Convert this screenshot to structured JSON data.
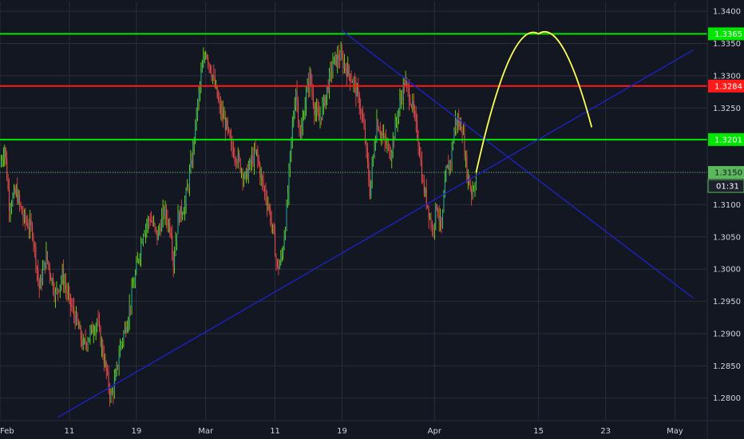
{
  "colors": {
    "background": "#131722",
    "grid": "#2a2e39",
    "axis_text": "#d1d4dc",
    "bull": "#26a69a",
    "bear": "#ef5350",
    "bull_wick": "#7cfc00",
    "bear_wick": "#ff4d4d",
    "resistance_green": "#00e600",
    "resistance_red": "#ff1a1a",
    "trendline": "#1e22cc",
    "projection": "#ffff55",
    "current_price": "#5cb85c"
  },
  "chart_data": {
    "type": "candlestick",
    "title": "",
    "xlabel": "",
    "ylabel": "",
    "ylim": [
      1.2765,
      1.3415
    ],
    "y_ticks": [
      "1.2800",
      "1.2850",
      "1.2900",
      "1.2950",
      "1.3000",
      "1.3050",
      "1.3100",
      "1.3150",
      "1.3200",
      "1.3250",
      "1.3300",
      "1.3350",
      "1.3400"
    ],
    "x_ticks": [
      {
        "label": "Feb",
        "slot": 0
      },
      {
        "label": "11",
        "slot": 60
      },
      {
        "label": "19",
        "slot": 118
      },
      {
        "label": "Mar",
        "slot": 178
      },
      {
        "label": "11",
        "slot": 238
      },
      {
        "label": "19",
        "slot": 296
      },
      {
        "label": "Apr",
        "slot": 376
      },
      {
        "label": "15",
        "slot": 466
      },
      {
        "label": "23",
        "slot": 524
      },
      {
        "label": "May",
        "slot": 584
      }
    ],
    "grid": true,
    "price_path": [
      [
        0,
        1.316
      ],
      [
        4,
        1.319
      ],
      [
        8,
        1.31
      ],
      [
        14,
        1.312
      ],
      [
        20,
        1.308
      ],
      [
        28,
        1.306
      ],
      [
        34,
        1.297
      ],
      [
        40,
        1.302
      ],
      [
        48,
        1.296
      ],
      [
        54,
        1.299
      ],
      [
        60,
        1.295
      ],
      [
        66,
        1.292
      ],
      [
        72,
        1.288
      ],
      [
        78,
        1.29
      ],
      [
        84,
        1.292
      ],
      [
        90,
        1.286
      ],
      [
        96,
        1.28
      ],
      [
        100,
        1.283
      ],
      [
        104,
        1.288
      ],
      [
        110,
        1.292
      ],
      [
        114,
        1.296
      ],
      [
        118,
        1.3
      ],
      [
        124,
        1.306
      ],
      [
        130,
        1.308
      ],
      [
        136,
        1.305
      ],
      [
        142,
        1.309
      ],
      [
        148,
        1.306
      ],
      [
        150,
        1.301
      ],
      [
        154,
        1.308
      ],
      [
        160,
        1.31
      ],
      [
        166,
        1.317
      ],
      [
        170,
        1.324
      ],
      [
        174,
        1.33
      ],
      [
        178,
        1.334
      ],
      [
        184,
        1.33
      ],
      [
        190,
        1.325
      ],
      [
        196,
        1.322
      ],
      [
        200,
        1.319
      ],
      [
        206,
        1.317
      ],
      [
        212,
        1.314
      ],
      [
        218,
        1.317
      ],
      [
        222,
        1.318
      ],
      [
        226,
        1.314
      ],
      [
        232,
        1.31
      ],
      [
        236,
        1.306
      ],
      [
        240,
        1.3
      ],
      [
        244,
        1.302
      ],
      [
        248,
        1.309
      ],
      [
        252,
        1.32
      ],
      [
        256,
        1.328
      ],
      [
        260,
        1.32
      ],
      [
        264,
        1.326
      ],
      [
        268,
        1.33
      ],
      [
        272,
        1.325
      ],
      [
        276,
        1.323
      ],
      [
        282,
        1.327
      ],
      [
        288,
        1.332
      ],
      [
        294,
        1.333
      ],
      [
        300,
        1.331
      ],
      [
        306,
        1.329
      ],
      [
        312,
        1.325
      ],
      [
        316,
        1.32
      ],
      [
        320,
        1.312
      ],
      [
        326,
        1.323
      ],
      [
        332,
        1.32
      ],
      [
        338,
        1.318
      ],
      [
        344,
        1.324
      ],
      [
        350,
        1.329
      ],
      [
        356,
        1.326
      ],
      [
        362,
        1.32
      ],
      [
        366,
        1.313
      ],
      [
        370,
        1.31
      ],
      [
        374,
        1.306
      ],
      [
        378,
        1.31
      ],
      [
        382,
        1.306
      ],
      [
        386,
        1.315
      ],
      [
        390,
        1.317
      ],
      [
        394,
        1.323
      ],
      [
        400,
        1.322
      ],
      [
        404,
        1.315
      ],
      [
        408,
        1.312
      ],
      [
        412,
        1.314
      ]
    ],
    "horizontal_levels": [
      {
        "value": 1.3365,
        "label": "1.3365",
        "color": "#00e600"
      },
      {
        "value": 1.3284,
        "label": "1.3284",
        "color": "#ff1a1a"
      },
      {
        "value": 1.3201,
        "label": "1.3201",
        "color": "#00e600"
      }
    ],
    "current_price": {
      "value": 1.315,
      "label": "1.3150",
      "countdown": "01:31"
    },
    "trendlines": [
      {
        "name": "ascending-support",
        "from": [
          50,
          1.277
        ],
        "to": [
          600,
          1.334
        ]
      },
      {
        "name": "descending-resistance",
        "from": [
          296,
          1.337
        ],
        "to": [
          600,
          1.2955
        ]
      }
    ],
    "projection_arc": {
      "from": [
        412,
        1.315
      ],
      "peak": [
        466,
        1.3365
      ],
      "to": [
        512,
        1.322
      ]
    },
    "slots_total": 612
  }
}
